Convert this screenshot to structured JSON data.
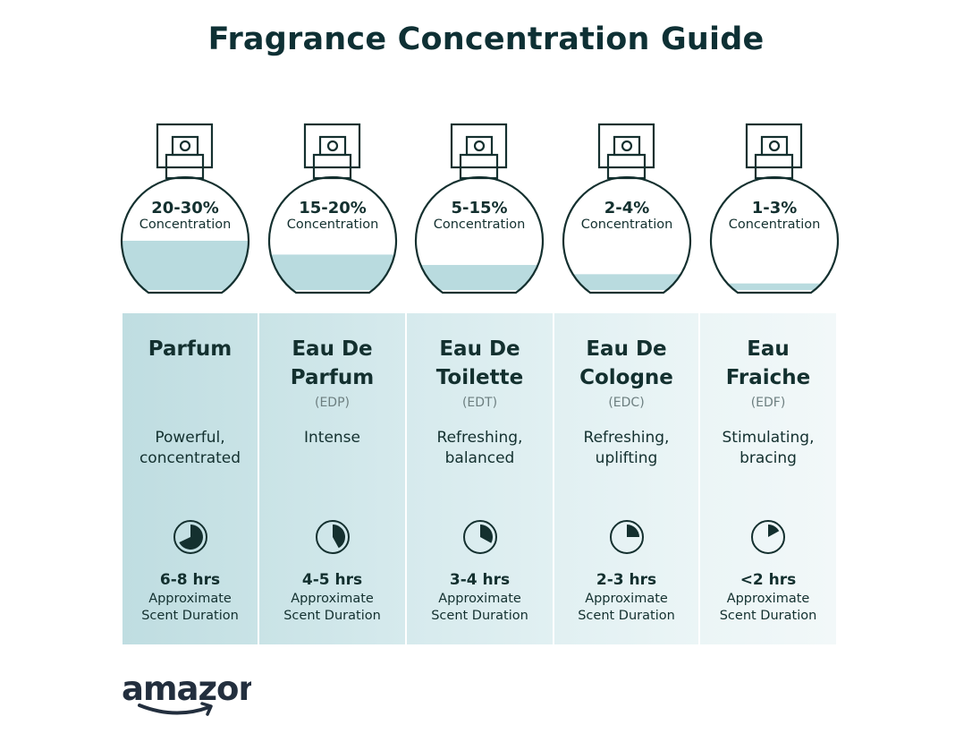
{
  "title": "Fragrance Concentration Guide",
  "colors": {
    "text": "#0e3034",
    "liquid": "#b9dbdf",
    "column_start": "#bcdce0",
    "column_end": "#f2f8f9"
  },
  "types": [
    {
      "concentration": "20-30%",
      "concentration_label": "Concentration",
      "fill_level": 0.45,
      "name_lines": [
        "Parfum"
      ],
      "abbr": "",
      "description": [
        "Powerful,",
        "concentrated"
      ],
      "duration": "6-8 hrs",
      "duration_label": [
        "Approximate",
        "Scent Duration"
      ],
      "clock_fraction": 0.68,
      "column_color": "#bfdde1"
    },
    {
      "concentration": "15-20%",
      "concentration_label": "Concentration",
      "fill_level": 0.33,
      "name_lines": [
        "Eau De",
        "Parfum"
      ],
      "abbr": "(EDP)",
      "description": [
        "Intense"
      ],
      "duration": "4-5 hrs",
      "duration_label": [
        "Approximate",
        "Scent Duration"
      ],
      "clock_fraction": 0.42,
      "column_color": "#c9e3e6"
    },
    {
      "concentration": "5-15%",
      "concentration_label": "Concentration",
      "fill_level": 0.24,
      "name_lines": [
        "Eau De",
        "Toilette"
      ],
      "abbr": "(EDT)",
      "description": [
        "Refreshing,",
        "balanced"
      ],
      "duration": "3-4 hrs",
      "duration_label": [
        "Approximate",
        "Scent Duration"
      ],
      "clock_fraction": 0.33,
      "column_color": "#d6eaed"
    },
    {
      "concentration": "2-4%",
      "concentration_label": "Concentration",
      "fill_level": 0.16,
      "name_lines": [
        "Eau De",
        "Cologne"
      ],
      "abbr": "(EDC)",
      "description": [
        "Refreshing,",
        "uplifting"
      ],
      "duration": "2-3 hrs",
      "duration_label": [
        "Approximate",
        "Scent Duration"
      ],
      "clock_fraction": 0.25,
      "column_color": "#e1f0f2"
    },
    {
      "concentration": "1-3%",
      "concentration_label": "Concentration",
      "fill_level": 0.08,
      "name_lines": [
        "Eau",
        "Fraiche"
      ],
      "abbr": "(EDF)",
      "description": [
        "Stimulating,",
        "bracing"
      ],
      "duration": "<2 hrs",
      "duration_label": [
        "Approximate",
        "Scent Duration"
      ],
      "clock_fraction": 0.17,
      "column_color": "#ebf5f6"
    }
  ],
  "logo": "amazon"
}
